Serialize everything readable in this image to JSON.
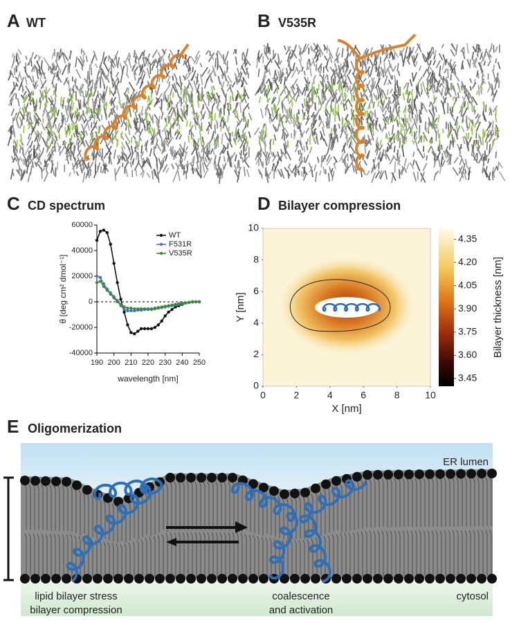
{
  "panels": [
    {
      "label": "A",
      "title": "WT"
    },
    {
      "label": "B",
      "title": "V535R"
    },
    {
      "label": "C"
    },
    {
      "label": "D"
    },
    {
      "label": "E",
      "title": "Oligomerization"
    }
  ],
  "chart_data": [
    {
      "type": "line",
      "title": "CD spectrum",
      "x_label": "wavelength [nm]",
      "y_label": "θ [deg cm² dmol⁻¹]",
      "x": [
        190,
        192,
        194,
        196,
        198,
        200,
        202,
        204,
        206,
        208,
        210,
        212,
        214,
        216,
        218,
        220,
        222,
        224,
        226,
        228,
        230,
        232,
        234,
        236,
        238,
        240,
        242,
        244,
        246,
        248,
        250
      ],
      "series": [
        {
          "name": "WT",
          "color": "#111111",
          "values": [
            48000,
            55000,
            56000,
            54000,
            45000,
            30000,
            15000,
            2000,
            -8000,
            -18000,
            -24000,
            -25000,
            -23000,
            -21000,
            -21000,
            -21000,
            -21000,
            -20000,
            -18000,
            -15000,
            -11000,
            -8000,
            -6000,
            -4000,
            -3000,
            -2000,
            -1000,
            -500,
            0,
            0,
            0
          ]
        },
        {
          "name": "F531R",
          "color": "#4a72c4",
          "values": [
            20000,
            19000,
            14000,
            10000,
            7000,
            4000,
            1000,
            -3000,
            -6000,
            -7000,
            -7000,
            -7000,
            -6500,
            -6500,
            -6000,
            -6000,
            -6000,
            -5500,
            -5000,
            -4500,
            -4000,
            -3500,
            -3000,
            -2500,
            -2000,
            -1500,
            -1000,
            -500,
            -200,
            0,
            0
          ]
        },
        {
          "name": "V535R",
          "color": "#3a8a3a",
          "values": [
            15000,
            16000,
            12000,
            9000,
            6000,
            3000,
            0,
            -2000,
            -4000,
            -5000,
            -5000,
            -5500,
            -5500,
            -5500,
            -5500,
            -5500,
            -5500,
            -5000,
            -4500,
            -4000,
            -3500,
            -3000,
            -2500,
            -2000,
            -1500,
            -1000,
            -800,
            -400,
            -200,
            0,
            0
          ]
        }
      ],
      "xlim": [
        190,
        250
      ],
      "xticks": [
        190,
        200,
        210,
        220,
        230,
        240,
        250
      ],
      "ylim": [
        -40000,
        60000
      ],
      "yticks": [
        -40000,
        -20000,
        0,
        20000,
        40000,
        60000
      ],
      "legend": "upper right"
    },
    {
      "type": "heatmap",
      "title": "Bilayer compression",
      "x_label": "X [nm]",
      "y_label": "Y [nm]",
      "colorbar_label": "Bilayer thickness [nm]",
      "xlim": [
        0,
        10
      ],
      "xticks": [
        0,
        2,
        4,
        6,
        8,
        10
      ],
      "ylim": [
        0,
        10
      ],
      "yticks": [
        0,
        2,
        4,
        6,
        8,
        10
      ],
      "clim": [
        3.4,
        4.42
      ],
      "cticks": [
        3.45,
        {
          "value": 3.6,
          "label": "3.60"
        },
        3.75,
        {
          "value": 3.9,
          "label": "3.90"
        },
        4.05,
        {
          "value": 4.2,
          "label": "4.20"
        },
        4.35
      ]
    }
  ],
  "diagram": {
    "top": "ER lumen",
    "bottom": "cytosol",
    "left_lines": [
      "lipid bilayer stress",
      "bilayer compression"
    ],
    "right_lines": [
      "coalescence",
      "and activation"
    ]
  }
}
